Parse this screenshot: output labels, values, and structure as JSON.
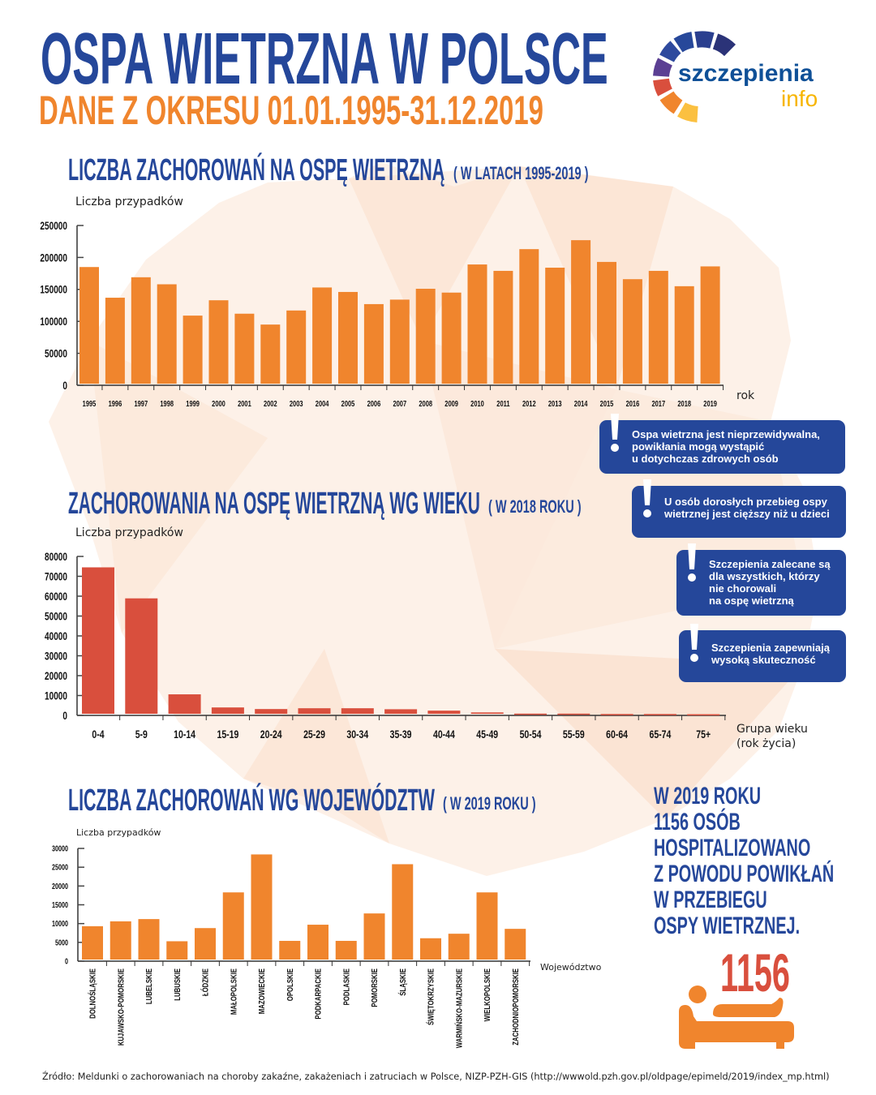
{
  "header": {
    "title": "OSPA WIETRZNA W POLSCE",
    "subtitle": "DANE Z OKRESU 01.01.1995-31.12.2019",
    "logo": {
      "word1": "szczepienia",
      "word2": "info"
    }
  },
  "colors": {
    "blue": "#25479a",
    "orange": "#f0852d",
    "red": "#d94f3d",
    "logo_yellow": "#f7b500"
  },
  "sections": {
    "yearly": {
      "title": "LICZBA ZACHOROWAŃ NA OSPĘ WIETRZNĄ",
      "subtitle": "( W LATACH 1995-2019 )"
    },
    "age": {
      "title": "ZACHOROWANIA NA OSPĘ WIETRZNĄ WG WIEKU",
      "subtitle": "( W 2018 ROKU )"
    },
    "region": {
      "title": "LICZBA ZACHOROWAŃ WG WOJEWÓDZTW",
      "subtitle": "( W 2019 ROKU )"
    }
  },
  "chart_data": [
    {
      "type": "bar",
      "ylabel": "Liczba przypadków",
      "xlabel": "rok",
      "ylim": [
        0,
        250000
      ],
      "yticks": [
        "0",
        "50000",
        "100000",
        "150000",
        "200000",
        "250000"
      ],
      "categories": [
        "1995",
        "1996",
        "1997",
        "1998",
        "1999",
        "2000",
        "2001",
        "2002",
        "2003",
        "2004",
        "2005",
        "2006",
        "2007",
        "2008",
        "2009",
        "2010",
        "2011",
        "2012",
        "2013",
        "2014",
        "2015",
        "2016",
        "2017",
        "2018",
        "2019"
      ],
      "values": [
        185000,
        137000,
        169000,
        158000,
        109000,
        133000,
        112000,
        95000,
        117000,
        153000,
        146000,
        127000,
        134000,
        151000,
        145000,
        189000,
        179000,
        213000,
        184000,
        227000,
        193000,
        166000,
        179000,
        155000,
        186000
      ],
      "color": "#f0852d",
      "grid": false
    },
    {
      "type": "bar",
      "ylabel": "Liczba przypadków",
      "xlabel": "Grupa wieku",
      "xlabel2": "(rok życia)",
      "ylim": [
        0,
        80000
      ],
      "yticks": [
        "0",
        "10000",
        "20000",
        "30000",
        "40000",
        "50000",
        "60000",
        "70000",
        "80000"
      ],
      "categories": [
        "0-4",
        "5-9",
        "10-14",
        "15-19",
        "20-24",
        "25-29",
        "30-34",
        "35-39",
        "40-44",
        "45-49",
        "50-54",
        "55-59",
        "60-64",
        "65-74",
        "75+"
      ],
      "values": [
        74500,
        58900,
        10600,
        4000,
        3200,
        3600,
        3600,
        3100,
        2400,
        1500,
        900,
        900,
        700,
        700,
        600
      ],
      "color": "#d94f3d",
      "grid": false
    },
    {
      "type": "bar",
      "ylabel": "Liczba przypadków",
      "xlabel": "Województwo",
      "ylim": [
        0,
        30000
      ],
      "yticks": [
        "0",
        "5000",
        "10000",
        "15000",
        "20000",
        "25000",
        "30000"
      ],
      "categories": [
        "DOLNOŚLĄSKIE",
        "KUJAWSKO-POMORSKIE",
        "LUBELSKIE",
        "LUBUSKIE",
        "ŁÓDZKIE",
        "MAŁOPOLSKIE",
        "MAZOWIECKIE",
        "OPOLSKIE",
        "PODKARPACKIE",
        "PODLASKIE",
        "POMORSKIE",
        "ŚLĄSKIE",
        "ŚWIĘTOKRZYSKIE",
        "WARMIŃSKO-MAZURSKIE",
        "WIELKOPOLSKIE",
        "ZACHODNIOPOMORSKIE"
      ],
      "values": [
        9300,
        10600,
        11200,
        5300,
        8800,
        18300,
        28400,
        5400,
        9700,
        5400,
        12700,
        25800,
        6100,
        7300,
        18300,
        8600
      ],
      "color": "#f0852d",
      "grid": false
    }
  ],
  "info_boxes": [
    {
      "lines": [
        "Ospa wietrzna jest nieprzewidywalna,",
        "powikłania mogą wystąpić",
        "u dotychczas zdrowych osób"
      ]
    },
    {
      "lines": [
        "U osób dorosłych przebieg ospy",
        "wietrznej jest cięższy niż u dzieci"
      ]
    },
    {
      "lines": [
        "Szczepienia zalecane są",
        "dla wszystkich, którzy",
        "nie chorowali",
        "na ospę wietrzną"
      ]
    },
    {
      "lines": [
        "Szczepienia zapewniają",
        "wysoką skuteczność"
      ]
    }
  ],
  "hospital": {
    "lines": [
      "W 2019 ROKU",
      "1156 OSÓB",
      "HOSPITALIZOWANO",
      "Z POWODU POWIKŁAŃ",
      "W PRZEBIEGU",
      "OSPY WIETRZNEJ."
    ],
    "count": "1156",
    "icon": "patient-in-bed-icon"
  },
  "footer": {
    "source": "Źródło: Meldunki o zachorowaniach na choroby zakaźne, zakażeniach i zatruciach w Polsce, NIZP-PZH-GIS (http://wwwold.pzh.gov.pl/oldpage/epimeld/2019/index_mp.html)"
  }
}
